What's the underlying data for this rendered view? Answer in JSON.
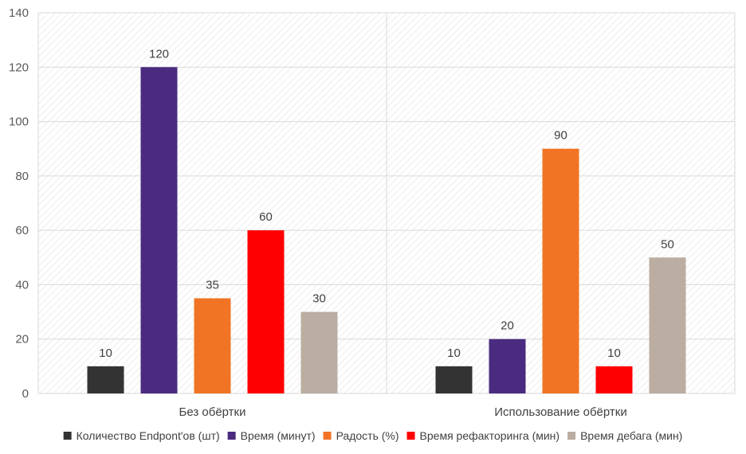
{
  "chart_data": {
    "type": "bar",
    "title": "",
    "xlabel": "",
    "ylabel": "",
    "ylim": [
      0,
      140
    ],
    "yticks": [
      0,
      20,
      40,
      60,
      80,
      100,
      120,
      140
    ],
    "grid": true,
    "legend_position": "bottom",
    "categories": [
      "Без обёртки",
      "Использование обёртки"
    ],
    "series": [
      {
        "name": "Количество Endpont'ов (шт)",
        "color": "#333333",
        "values": [
          10,
          10
        ]
      },
      {
        "name": "Время (минут)",
        "color": "#4a2b7f",
        "values": [
          120,
          20
        ]
      },
      {
        "name": "Радость (%)",
        "color": "#f07424",
        "values": [
          35,
          90
        ]
      },
      {
        "name": "Время рефакторинга (мин)",
        "color": "#ff0000",
        "values": [
          60,
          10
        ]
      },
      {
        "name": "Время дебага (мин)",
        "color": "#bbada1",
        "values": [
          30,
          50
        ]
      }
    ]
  }
}
